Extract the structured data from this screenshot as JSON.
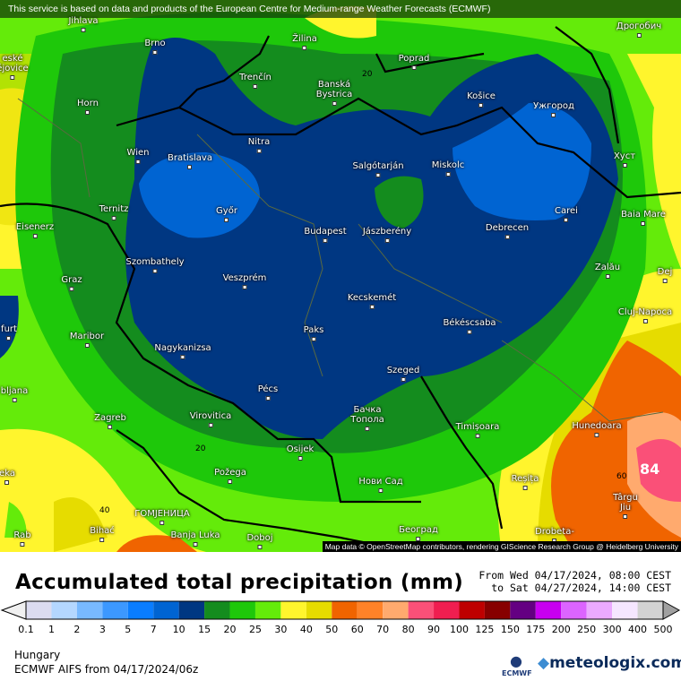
{
  "banner": "This service is based on data and products of the European Centre for Medium-range Weather Forecasts (ECMWF)",
  "map_attribution": "Map data © OpenStreetMap contributors, rendering GIScience Research Group @ Heidelberg University",
  "cities": [
    "Jihlava",
    "Brno",
    "Žilina",
    "Poprad",
    "Дрогобич",
    "eské\nějovice",
    "Horn",
    "Trenčín",
    "Banská\nBystrica",
    "Košice",
    "Ужгород",
    "Wien",
    "Bratislava",
    "Nitra",
    "Salgótarján",
    "Miskolc",
    "Хуст",
    "Ternitz",
    "Győr",
    "Carei",
    "Baia Mare",
    "Eisenerz",
    "Budapest",
    "Jászberény",
    "Debrecen",
    "Zalău",
    "Szombathely",
    "Graz",
    "Veszprém",
    "Dej",
    "Kecskemét",
    "Cluj-Napoca",
    "Békéscsaba",
    "Paks",
    "furt",
    "Maribor",
    "Nagykanizsa",
    "Szeged",
    "Pécs",
    "bljana",
    "Zagreb",
    "Virovitica",
    "Бачка\nТопола",
    "Timișoara",
    "Hunedoara",
    "Osijek",
    "Požega",
    "Reșița",
    "Нови Сад",
    "eka",
    "Târgu\nJiu",
    "ГОМЈЕНИЦА",
    "Bihać",
    "Banja Luka",
    "Doboj",
    "Београд",
    "Drobeta-",
    "Rab"
  ],
  "contour_labels": [
    "20",
    "20",
    "40",
    "60",
    "84"
  ],
  "title": "Accumulated total precipitation (mm)",
  "period_from": "From Wed 04/17/2024, 08:00 CEST",
  "period_to": "to Sat 04/27/2024, 14:00 CEST",
  "legend": {
    "ticks": [
      "0.1",
      "1",
      "2",
      "3",
      "5",
      "7",
      "10",
      "15",
      "20",
      "25",
      "30",
      "40",
      "50",
      "60",
      "70",
      "80",
      "90",
      "100",
      "125",
      "150",
      "175",
      "200",
      "250",
      "300",
      "400",
      "500"
    ],
    "colors": [
      "#dcdcf0",
      "#b4d7ff",
      "#78b9ff",
      "#3c98ff",
      "#0a7dff",
      "#0064d2",
      "#003782",
      "#148c1e",
      "#1ec80a",
      "#64eb0a",
      "#fff52d",
      "#e6dc00",
      "#f06400",
      "#ff8228",
      "#ffaa6e",
      "#fa5078",
      "#f01e50",
      "#be0000",
      "#870000",
      "#640082",
      "#c800f0",
      "#dc64ff",
      "#ebaaff",
      "#f5e6ff",
      "#d2d2d2"
    ]
  },
  "region": "Hungary",
  "model_run": "ECMWF AIFS from  04/17/2024/06z",
  "logo_ecmwf": "ECMWF",
  "logo_meteologix": "meteologix.com"
}
